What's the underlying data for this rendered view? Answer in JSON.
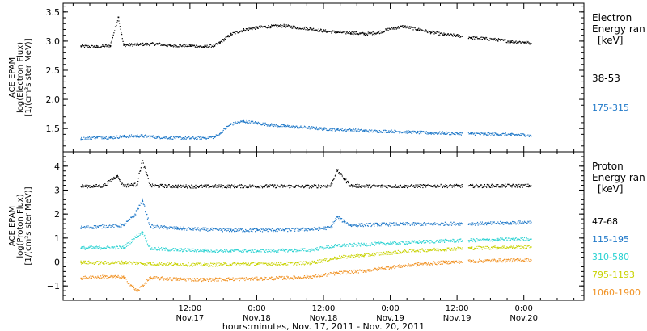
{
  "chart_data": [
    {
      "type": "scatter",
      "panel": "electron",
      "ylabel_lines": [
        "ACE EPAM",
        "log(Electron Flux)",
        "[1/(cm²s ster MeV)]"
      ],
      "ylim": [
        1.1,
        3.65
      ],
      "yticks": [
        1.5,
        2.0,
        2.5,
        3.0,
        3.5
      ],
      "ytick_labels": [
        "1.5",
        "2.0",
        "2.5",
        "3.0",
        "3.5"
      ],
      "legend_title": "Electron Energy range [keV]",
      "legend_title_lines": [
        "Electron",
        "Energy ran",
        "[keV]"
      ],
      "series": [
        {
          "name": "38-53",
          "color": "#000000",
          "points": [
            [
              -0.32,
              2.92
            ],
            [
              -0.2,
              2.91
            ],
            [
              -0.1,
              2.93
            ],
            [
              -0.04,
              3.42
            ],
            [
              0.0,
              2.94
            ],
            [
              0.12,
              2.95
            ],
            [
              0.25,
              2.96
            ],
            [
              0.35,
              2.93
            ],
            [
              0.5,
              2.93
            ],
            [
              0.6,
              2.91
            ],
            [
              0.68,
              2.93
            ],
            [
              0.72,
              2.98
            ],
            [
              0.8,
              3.12
            ],
            [
              0.9,
              3.2
            ],
            [
              1.0,
              3.24
            ],
            [
              1.1,
              3.26
            ],
            [
              1.2,
              3.27
            ],
            [
              1.3,
              3.24
            ],
            [
              1.4,
              3.22
            ],
            [
              1.5,
              3.18
            ],
            [
              1.6,
              3.16
            ],
            [
              1.7,
              3.15
            ],
            [
              1.8,
              3.13
            ],
            [
              1.9,
              3.15
            ],
            [
              2.0,
              3.22
            ],
            [
              2.1,
              3.26
            ],
            [
              2.2,
              3.21
            ],
            [
              2.3,
              3.16
            ],
            [
              2.4,
              3.12
            ],
            [
              2.5,
              3.1
            ],
            [
              2.6,
              3.07
            ],
            [
              2.7,
              3.05
            ],
            [
              2.8,
              3.03
            ],
            [
              2.9,
              3.0
            ],
            [
              3.0,
              2.99
            ],
            [
              3.05,
              2.97
            ]
          ]
        },
        {
          "name": "175-315",
          "color": "#1f78c8",
          "points": [
            [
              -0.32,
              1.33
            ],
            [
              -0.2,
              1.36
            ],
            [
              -0.1,
              1.35
            ],
            [
              0.0,
              1.37
            ],
            [
              0.12,
              1.38
            ],
            [
              0.25,
              1.36
            ],
            [
              0.35,
              1.35
            ],
            [
              0.5,
              1.34
            ],
            [
              0.6,
              1.35
            ],
            [
              0.68,
              1.36
            ],
            [
              0.72,
              1.42
            ],
            [
              0.8,
              1.58
            ],
            [
              0.9,
              1.63
            ],
            [
              1.0,
              1.6
            ],
            [
              1.1,
              1.57
            ],
            [
              1.2,
              1.55
            ],
            [
              1.3,
              1.53
            ],
            [
              1.4,
              1.52
            ],
            [
              1.5,
              1.5
            ],
            [
              1.6,
              1.49
            ],
            [
              1.7,
              1.48
            ],
            [
              1.8,
              1.47
            ],
            [
              1.9,
              1.46
            ],
            [
              2.0,
              1.46
            ],
            [
              2.1,
              1.45
            ],
            [
              2.2,
              1.44
            ],
            [
              2.3,
              1.43
            ],
            [
              2.4,
              1.43
            ],
            [
              2.5,
              1.42
            ],
            [
              2.6,
              1.42
            ],
            [
              2.7,
              1.41
            ],
            [
              2.8,
              1.41
            ],
            [
              2.9,
              1.4
            ],
            [
              3.0,
              1.4
            ],
            [
              3.05,
              1.38
            ]
          ]
        }
      ]
    },
    {
      "type": "scatter",
      "panel": "proton",
      "ylabel_lines": [
        "ACE EPAM",
        "log(Proton Flux)",
        "[1/(cm²s ster MeV)]"
      ],
      "ylim": [
        -1.6,
        4.6
      ],
      "yticks": [
        -1,
        0,
        1,
        2,
        3,
        4
      ],
      "ytick_labels": [
        "−1",
        "0",
        "1",
        "2",
        "3",
        "4"
      ],
      "legend_title": "Proton Energy range [keV]",
      "legend_title_lines": [
        "Proton",
        "Energy ran",
        "[keV]"
      ],
      "series": [
        {
          "name": "47-68",
          "color": "#000000",
          "points": [
            [
              -0.32,
              3.18
            ],
            [
              -0.15,
              3.19
            ],
            [
              -0.05,
              3.62
            ],
            [
              0.0,
              3.2
            ],
            [
              0.1,
              3.25
            ],
            [
              0.14,
              4.25
            ],
            [
              0.2,
              3.2
            ],
            [
              0.4,
              3.18
            ],
            [
              0.6,
              3.17
            ],
            [
              0.8,
              3.18
            ],
            [
              1.0,
              3.18
            ],
            [
              1.2,
              3.18
            ],
            [
              1.4,
              3.17
            ],
            [
              1.55,
              3.2
            ],
            [
              1.6,
              3.85
            ],
            [
              1.65,
              3.5
            ],
            [
              1.7,
              3.2
            ],
            [
              1.9,
              3.18
            ],
            [
              2.1,
              3.18
            ],
            [
              2.3,
              3.19
            ],
            [
              2.5,
              3.19
            ],
            [
              2.7,
              3.19
            ],
            [
              2.9,
              3.2
            ],
            [
              3.05,
              3.2
            ]
          ]
        },
        {
          "name": "115-195",
          "color": "#1f78c8",
          "points": [
            [
              -0.32,
              1.45
            ],
            [
              -0.15,
              1.5
            ],
            [
              0.0,
              1.55
            ],
            [
              0.08,
              1.95
            ],
            [
              0.14,
              2.6
            ],
            [
              0.2,
              1.5
            ],
            [
              0.4,
              1.42
            ],
            [
              0.6,
              1.38
            ],
            [
              0.8,
              1.35
            ],
            [
              1.0,
              1.35
            ],
            [
              1.2,
              1.36
            ],
            [
              1.4,
              1.38
            ],
            [
              1.55,
              1.45
            ],
            [
              1.6,
              1.9
            ],
            [
              1.65,
              1.7
            ],
            [
              1.7,
              1.55
            ],
            [
              1.9,
              1.58
            ],
            [
              2.1,
              1.6
            ],
            [
              2.3,
              1.6
            ],
            [
              2.5,
              1.62
            ],
            [
              2.7,
              1.62
            ],
            [
              2.9,
              1.65
            ],
            [
              3.05,
              1.68
            ]
          ]
        },
        {
          "name": "310-580",
          "color": "#2ad2d2",
          "points": [
            [
              -0.32,
              0.6
            ],
            [
              -0.15,
              0.62
            ],
            [
              0.0,
              0.62
            ],
            [
              0.14,
              1.28
            ],
            [
              0.2,
              0.58
            ],
            [
              0.4,
              0.52
            ],
            [
              0.6,
              0.5
            ],
            [
              0.8,
              0.48
            ],
            [
              1.0,
              0.48
            ],
            [
              1.2,
              0.5
            ],
            [
              1.4,
              0.52
            ],
            [
              1.6,
              0.7
            ],
            [
              1.8,
              0.75
            ],
            [
              2.0,
              0.8
            ],
            [
              2.2,
              0.85
            ],
            [
              2.4,
              0.9
            ],
            [
              2.6,
              0.92
            ],
            [
              2.8,
              0.95
            ],
            [
              3.05,
              0.98
            ]
          ]
        },
        {
          "name": "795-1193",
          "color": "#c8d200",
          "points": [
            [
              -0.32,
              0.0
            ],
            [
              -0.15,
              -0.02
            ],
            [
              0.0,
              0.0
            ],
            [
              0.2,
              -0.05
            ],
            [
              0.4,
              -0.08
            ],
            [
              0.6,
              -0.1
            ],
            [
              0.8,
              -0.08
            ],
            [
              1.0,
              -0.05
            ],
            [
              1.2,
              -0.05
            ],
            [
              1.4,
              -0.02
            ],
            [
              1.6,
              0.2
            ],
            [
              1.8,
              0.3
            ],
            [
              2.0,
              0.4
            ],
            [
              2.2,
              0.5
            ],
            [
              2.4,
              0.55
            ],
            [
              2.6,
              0.6
            ],
            [
              2.8,
              0.62
            ],
            [
              3.05,
              0.65
            ]
          ]
        },
        {
          "name": "1060-1900",
          "color": "#f09020",
          "points": [
            [
              -0.32,
              -0.65
            ],
            [
              -0.15,
              -0.6
            ],
            [
              0.0,
              -0.62
            ],
            [
              0.1,
              -1.2
            ],
            [
              0.2,
              -0.65
            ],
            [
              0.4,
              -0.7
            ],
            [
              0.6,
              -0.72
            ],
            [
              0.8,
              -0.7
            ],
            [
              1.0,
              -0.68
            ],
            [
              1.2,
              -0.65
            ],
            [
              1.4,
              -0.6
            ],
            [
              1.6,
              -0.45
            ],
            [
              1.8,
              -0.35
            ],
            [
              2.0,
              -0.2
            ],
            [
              2.2,
              -0.08
            ],
            [
              2.4,
              0.0
            ],
            [
              2.6,
              0.05
            ],
            [
              2.8,
              0.08
            ],
            [
              3.05,
              0.1
            ]
          ]
        }
      ]
    }
  ],
  "x_axis": {
    "unit": "days from Nov. 17, 2011 00:00 UT",
    "xlim": [
      -0.45,
      3.45
    ],
    "ticks": [
      0.5,
      1.0,
      1.5,
      2.0,
      2.5,
      3.0
    ],
    "tick_labels": [
      [
        "12:00",
        "Nov.17"
      ],
      [
        "0:00",
        "Nov.18"
      ],
      [
        "12:00",
        "Nov.18"
      ],
      [
        "0:00",
        "Nov.19"
      ],
      [
        "12:00",
        "Nov.19"
      ],
      [
        "0:00",
        "Nov.20"
      ]
    ],
    "minor_step": 0.125,
    "label": "hours:minutes, Nov. 17, 2011 - Nov. 20, 2011"
  }
}
